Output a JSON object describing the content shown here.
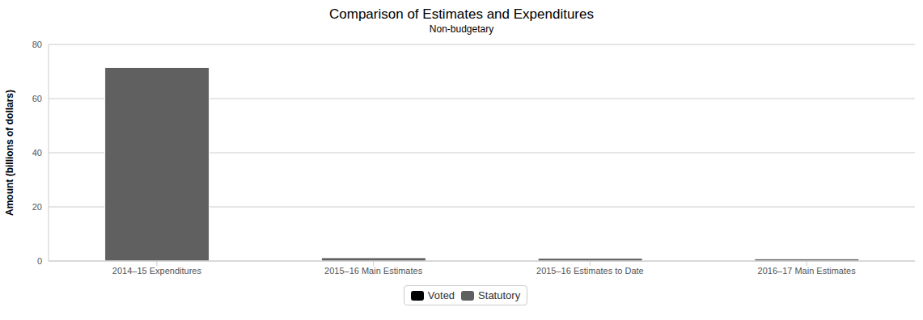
{
  "chart_data": {
    "type": "bar",
    "title": "Comparison of Estimates and Expenditures",
    "subtitle": "Non-budgetary",
    "y_label": "Amount (billions of dollars)",
    "categories": [
      "2014–15 Expenditures",
      "2015–16 Main Estimates",
      "2015–16 Estimates to Date",
      "2016–17 Main Estimates"
    ],
    "series": [
      {
        "name": "Voted",
        "color": "#000000",
        "values": [
          0,
          0,
          0,
          0
        ]
      },
      {
        "name": "Statutory",
        "color": "#606060",
        "values": [
          71.5,
          1.2,
          1.0,
          0.8
        ]
      }
    ],
    "stacked": true,
    "ylim": [
      0,
      80
    ],
    "yticks": [
      0,
      20,
      40,
      60,
      80
    ],
    "grid": true,
    "legend": "bottom"
  }
}
